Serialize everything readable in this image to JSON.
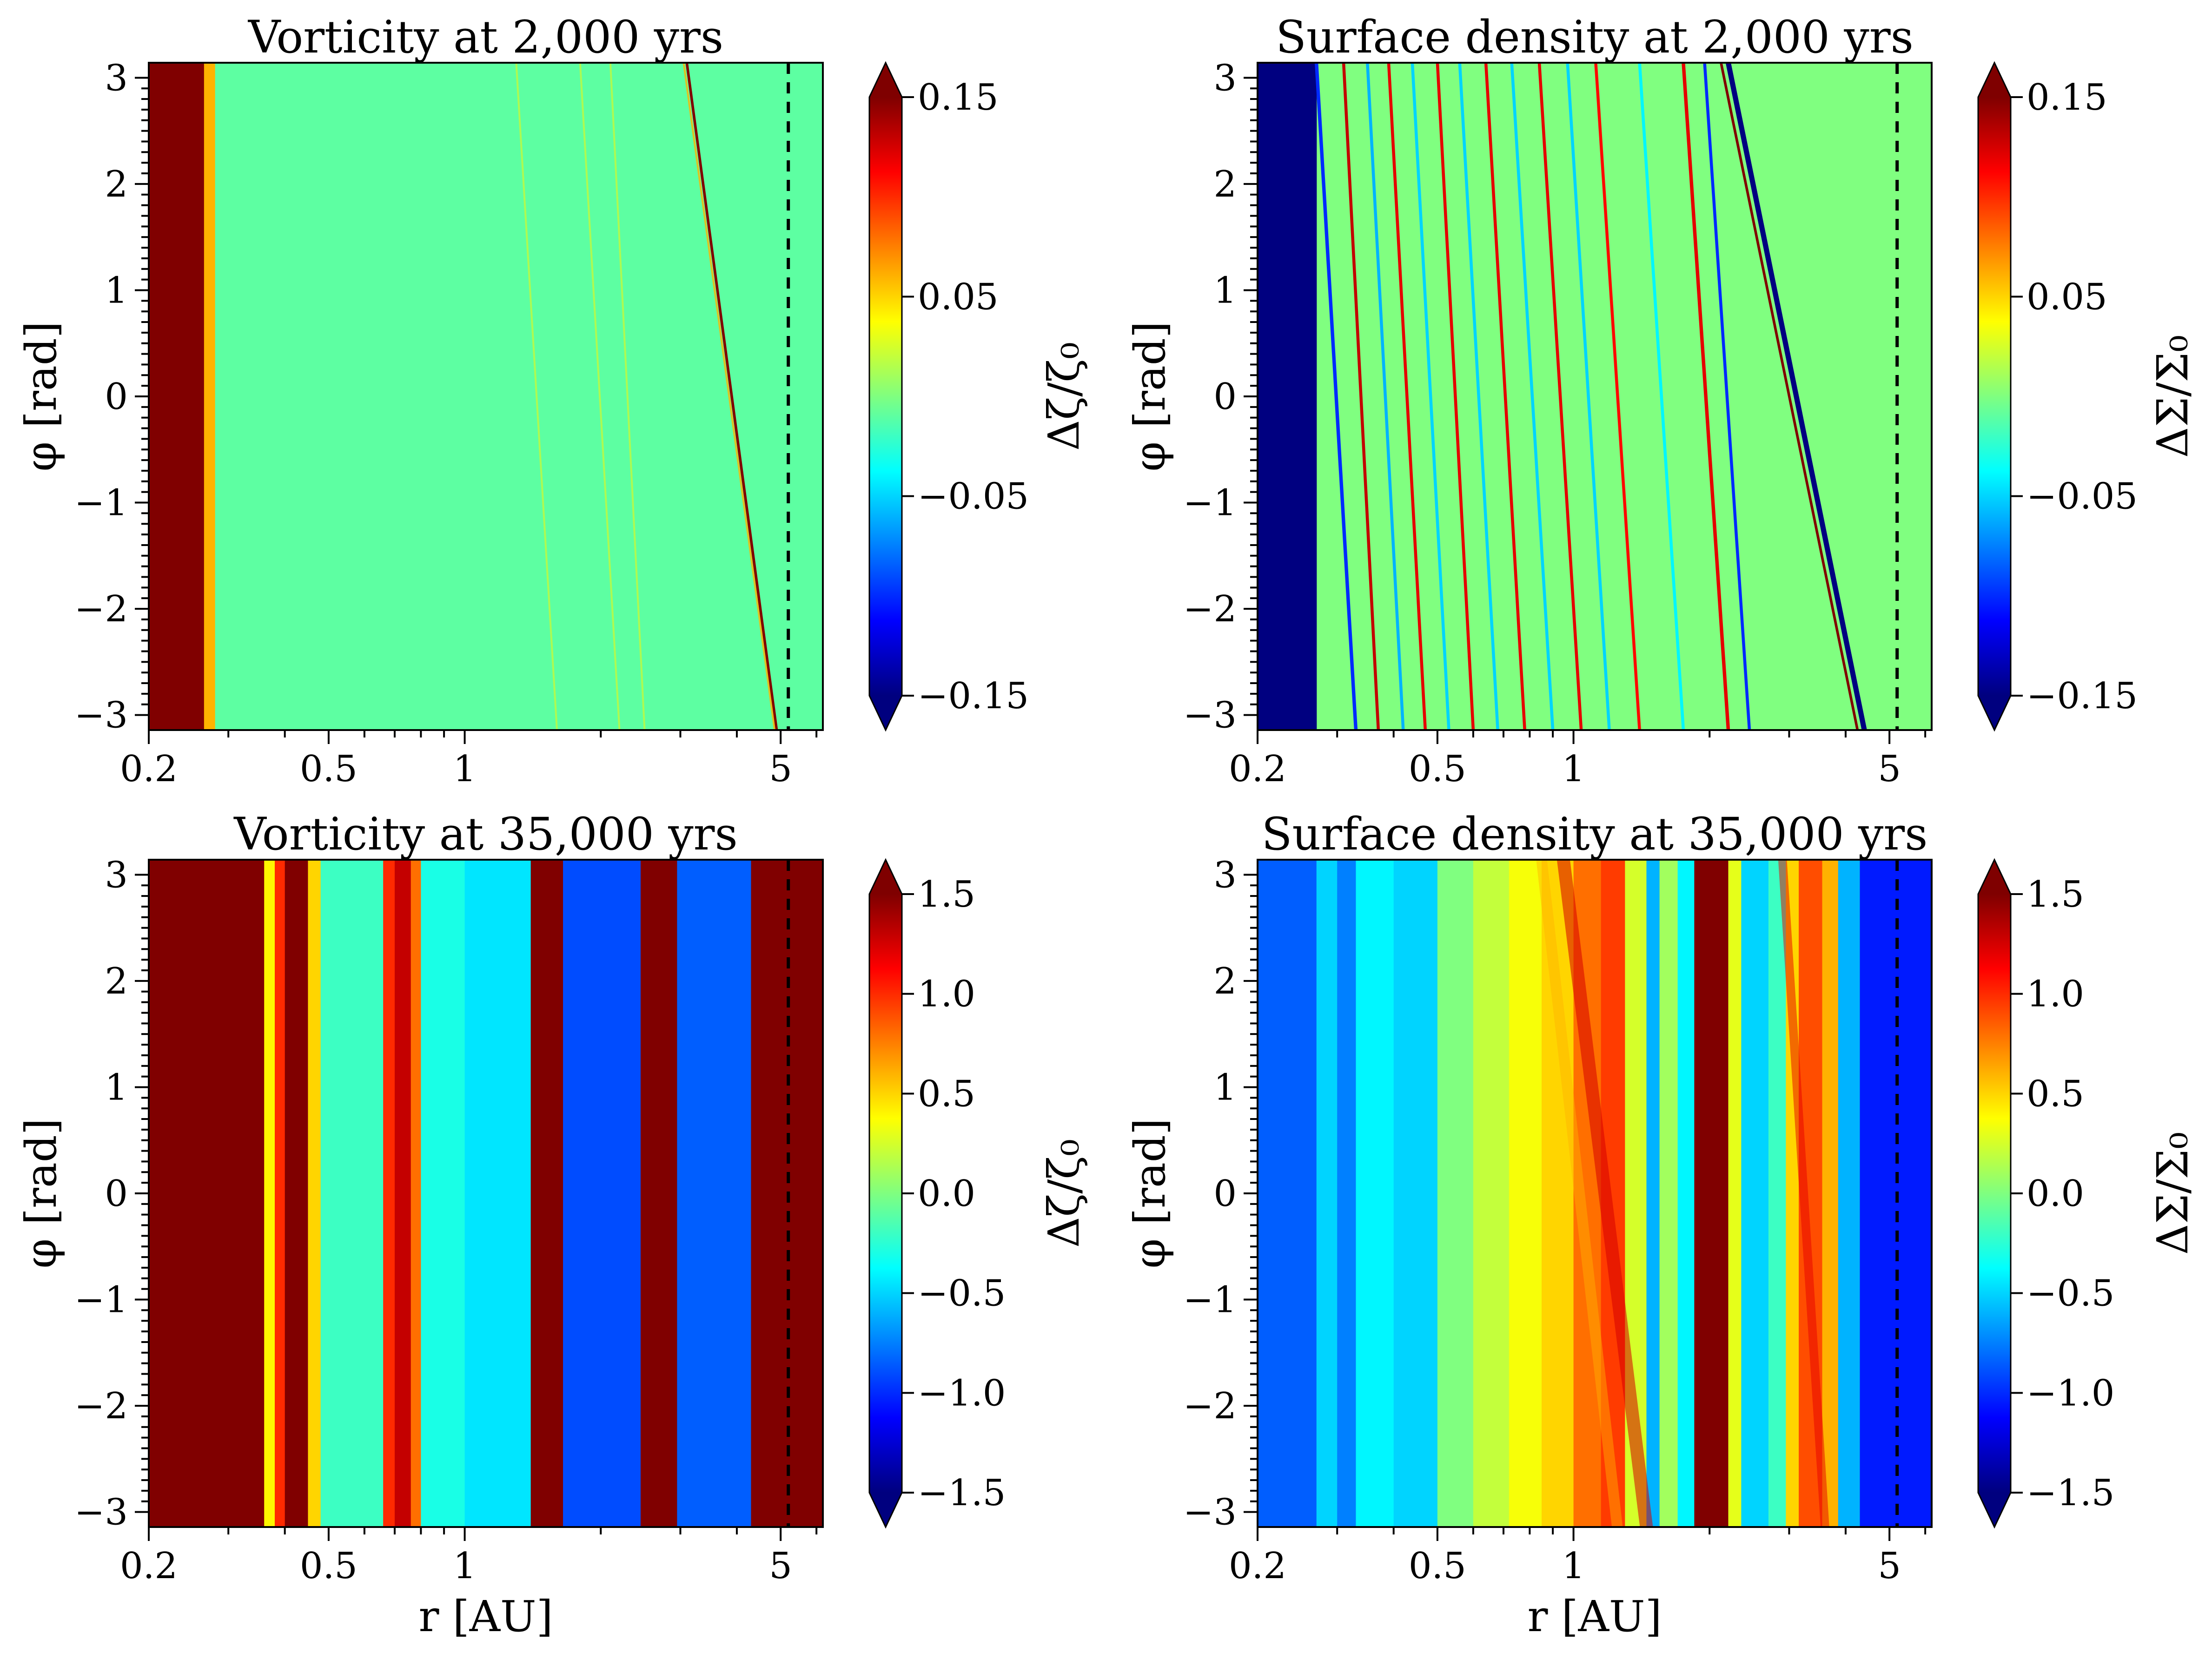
{
  "chart_data": [
    {
      "type": "heatmap",
      "title": "Vorticity at 2,000 yrs",
      "xlabel": "",
      "ylabel": "φ [rad]",
      "x_scale": "log",
      "xlim": [
        0.2,
        6.2
      ],
      "ylim": [
        -3.1416,
        3.1416
      ],
      "xticks": [
        0.2,
        0.5,
        1,
        5
      ],
      "xtick_labels": [
        "0.2",
        "0.5",
        "1",
        "5"
      ],
      "yticks": [
        -3,
        -2,
        -1,
        0,
        1,
        2,
        3
      ],
      "ytick_labels": [
        "−3",
        "−2",
        "−1",
        "0",
        "1",
        "2",
        "3"
      ],
      "planet_r": 5.2,
      "colorbar": {
        "label": "Δζ/ζ₀",
        "range": [
          -0.15,
          0.15
        ],
        "ticks": [
          -0.15,
          -0.05,
          0.05,
          0.15
        ],
        "tick_labels": [
          "−0.15",
          "−0.05",
          "0.05",
          "0.15"
        ],
        "extend": "both",
        "colormap": "jet"
      },
      "background": -0.01,
      "bands": [
        {
          "r0": 0.2,
          "r1": 0.265,
          "v": 0.3
        },
        {
          "r0": 0.265,
          "r1": 0.28,
          "v": 0.06
        }
      ],
      "spirals": [
        {
          "r0": 3.1,
          "r1": 4.9,
          "w": 0.006,
          "v": 0.15,
          "alpha": 1.0
        },
        {
          "r0": 3.05,
          "r1": 4.85,
          "w": 0.004,
          "v": 0.06,
          "alpha": 0.8
        },
        {
          "r0": 1.3,
          "r1": 1.6,
          "w": 0.004,
          "v": 0.04,
          "alpha": 0.5
        },
        {
          "r0": 1.8,
          "r1": 2.2,
          "w": 0.004,
          "v": 0.04,
          "alpha": 0.5
        },
        {
          "r0": 2.1,
          "r1": 2.5,
          "w": 0.004,
          "v": 0.04,
          "alpha": 0.5
        }
      ]
    },
    {
      "type": "heatmap",
      "title": "Surface density at 2,000 yrs",
      "xlabel": "",
      "ylabel": "φ [rad]",
      "x_scale": "log",
      "xlim": [
        0.2,
        6.2
      ],
      "ylim": [
        -3.1416,
        3.1416
      ],
      "xticks": [
        0.2,
        0.5,
        1,
        5
      ],
      "xtick_labels": [
        "0.2",
        "0.5",
        "1",
        "5"
      ],
      "yticks": [
        -3,
        -2,
        -1,
        0,
        1,
        2,
        3
      ],
      "ytick_labels": [
        "−3",
        "−2",
        "−1",
        "0",
        "1",
        "2",
        "3"
      ],
      "planet_r": 5.2,
      "colorbar": {
        "label": "ΔΣ/Σ₀",
        "range": [
          -0.15,
          0.15
        ],
        "ticks": [
          -0.15,
          -0.05,
          0.05,
          0.15
        ],
        "tick_labels": [
          "−0.15",
          "−0.05",
          "0.05",
          "0.15"
        ],
        "extend": "both",
        "colormap": "jet"
      },
      "background": 0.0,
      "bands": [
        {
          "r0": 0.2,
          "r1": 0.27,
          "v": -0.3
        }
      ],
      "spirals": [
        {
          "r0": 0.27,
          "r1": 0.33,
          "w": 0.008,
          "v": -0.1,
          "alpha": 1.0
        },
        {
          "r0": 0.31,
          "r1": 0.37,
          "w": 0.007,
          "v": 0.13,
          "alpha": 1.0
        },
        {
          "r0": 0.35,
          "r1": 0.42,
          "w": 0.007,
          "v": -0.06,
          "alpha": 1.0
        },
        {
          "r0": 0.39,
          "r1": 0.47,
          "w": 0.007,
          "v": 0.12,
          "alpha": 1.0
        },
        {
          "r0": 0.44,
          "r1": 0.53,
          "w": 0.007,
          "v": -0.05,
          "alpha": 1.0
        },
        {
          "r0": 0.5,
          "r1": 0.6,
          "w": 0.007,
          "v": 0.12,
          "alpha": 1.0
        },
        {
          "r0": 0.56,
          "r1": 0.68,
          "w": 0.007,
          "v": -0.05,
          "alpha": 1.0
        },
        {
          "r0": 0.64,
          "r1": 0.78,
          "w": 0.007,
          "v": 0.12,
          "alpha": 1.0
        },
        {
          "r0": 0.73,
          "r1": 0.9,
          "w": 0.007,
          "v": -0.05,
          "alpha": 1.0
        },
        {
          "r0": 0.84,
          "r1": 1.04,
          "w": 0.007,
          "v": 0.12,
          "alpha": 1.0
        },
        {
          "r0": 0.97,
          "r1": 1.2,
          "w": 0.007,
          "v": -0.05,
          "alpha": 1.0
        },
        {
          "r0": 1.12,
          "r1": 1.4,
          "w": 0.007,
          "v": 0.11,
          "alpha": 1.0
        },
        {
          "r0": 1.4,
          "r1": 1.75,
          "w": 0.007,
          "v": -0.04,
          "alpha": 1.0
        },
        {
          "r0": 1.75,
          "r1": 2.2,
          "w": 0.008,
          "v": 0.12,
          "alpha": 1.0
        },
        {
          "r0": 1.95,
          "r1": 2.45,
          "w": 0.007,
          "v": -0.1,
          "alpha": 1.0
        },
        {
          "r0": 2.2,
          "r1": 4.4,
          "w": 0.012,
          "v": -0.15,
          "alpha": 1.0
        },
        {
          "r0": 2.12,
          "r1": 4.25,
          "w": 0.006,
          "v": 0.15,
          "alpha": 1.0
        }
      ]
    },
    {
      "type": "heatmap",
      "title": "Vorticity at 35,000 yrs",
      "xlabel": "r [AU]",
      "ylabel": "φ [rad]",
      "x_scale": "log",
      "xlim": [
        0.2,
        6.2
      ],
      "ylim": [
        -3.1416,
        3.1416
      ],
      "xticks": [
        0.2,
        0.5,
        1,
        5
      ],
      "xtick_labels": [
        "0.2",
        "0.5",
        "1",
        "5"
      ],
      "yticks": [
        -3,
        -2,
        -1,
        0,
        1,
        2,
        3
      ],
      "ytick_labels": [
        "−3",
        "−2",
        "−1",
        "0",
        "1",
        "2",
        "3"
      ],
      "planet_r": 5.2,
      "colorbar": {
        "label": "Δζ/ζ₀",
        "range": [
          -1.5,
          1.5
        ],
        "ticks": [
          -1.5,
          -1.0,
          -0.5,
          0.0,
          0.5,
          1.0,
          1.5
        ],
        "tick_labels": [
          "−1.5",
          "−1.0",
          "−0.5",
          "0.0",
          "0.5",
          "1.0",
          "1.5"
        ],
        "extend": "both",
        "colormap": "jet"
      },
      "background": -0.3,
      "bands": [
        {
          "r0": 0.2,
          "r1": 0.36,
          "v": 3.0
        },
        {
          "r0": 0.36,
          "r1": 0.38,
          "v": 0.4
        },
        {
          "r0": 0.38,
          "r1": 0.4,
          "v": 1.0
        },
        {
          "r0": 0.4,
          "r1": 0.45,
          "v": 3.0
        },
        {
          "r0": 0.45,
          "r1": 0.48,
          "v": 0.5
        },
        {
          "r0": 0.48,
          "r1": 0.66,
          "v": -0.2
        },
        {
          "r0": 0.66,
          "r1": 0.7,
          "v": 1.0
        },
        {
          "r0": 0.7,
          "r1": 0.76,
          "v": 1.3
        },
        {
          "r0": 0.76,
          "r1": 0.8,
          "v": 0.8
        },
        {
          "r0": 0.8,
          "r1": 1.0,
          "v": -0.3
        },
        {
          "r0": 1.0,
          "r1": 1.4,
          "v": -0.45
        },
        {
          "r0": 1.4,
          "r1": 1.65,
          "v": 3.0
        },
        {
          "r0": 1.65,
          "r1": 2.45,
          "v": -0.9
        },
        {
          "r0": 2.45,
          "r1": 2.95,
          "v": 3.0
        },
        {
          "r0": 2.95,
          "r1": 4.3,
          "v": -0.85
        },
        {
          "r0": 4.3,
          "r1": 6.2,
          "v": 3.0
        }
      ],
      "spirals": []
    },
    {
      "type": "heatmap",
      "title": "Surface density at 35,000 yrs",
      "xlabel": "r [AU]",
      "ylabel": "φ [rad]",
      "x_scale": "log",
      "xlim": [
        0.2,
        6.2
      ],
      "ylim": [
        -3.1416,
        3.1416
      ],
      "xticks": [
        0.2,
        0.5,
        1,
        5
      ],
      "xtick_labels": [
        "0.2",
        "0.5",
        "1",
        "5"
      ],
      "yticks": [
        -3,
        -2,
        -1,
        0,
        1,
        2,
        3
      ],
      "ytick_labels": [
        "−3",
        "−2",
        "−1",
        "0",
        "1",
        "2",
        "3"
      ],
      "planet_r": 5.2,
      "colorbar": {
        "label": "ΔΣ/Σ₀",
        "range": [
          -1.5,
          1.5
        ],
        "ticks": [
          -1.5,
          -1.0,
          -0.5,
          0.0,
          0.5,
          1.0,
          1.5
        ],
        "tick_labels": [
          "−1.5",
          "−1.0",
          "−0.5",
          "0.0",
          "0.5",
          "1.0",
          "1.5"
        ],
        "extend": "both",
        "colormap": "jet"
      },
      "background": -0.8,
      "bands": [
        {
          "r0": 0.2,
          "r1": 0.27,
          "v": -0.85
        },
        {
          "r0": 0.27,
          "r1": 0.3,
          "v": -0.5
        },
        {
          "r0": 0.3,
          "r1": 0.33,
          "v": -0.75
        },
        {
          "r0": 0.33,
          "r1": 0.4,
          "v": -0.4
        },
        {
          "r0": 0.4,
          "r1": 0.5,
          "v": -0.5
        },
        {
          "r0": 0.5,
          "r1": 0.6,
          "v": 0.0
        },
        {
          "r0": 0.6,
          "r1": 0.72,
          "v": 0.2
        },
        {
          "r0": 0.72,
          "r1": 0.85,
          "v": 0.35
        },
        {
          "r0": 0.85,
          "r1": 1.0,
          "v": 0.5
        },
        {
          "r0": 1.0,
          "r1": 1.15,
          "v": 0.8
        },
        {
          "r0": 1.15,
          "r1": 1.3,
          "v": 0.95
        },
        {
          "r0": 1.3,
          "r1": 1.45,
          "v": 0.25
        },
        {
          "r0": 1.45,
          "r1": 1.55,
          "v": -0.6
        },
        {
          "r0": 1.55,
          "r1": 1.7,
          "v": 0.1
        },
        {
          "r0": 1.7,
          "r1": 1.85,
          "v": -0.4
        },
        {
          "r0": 1.85,
          "r1": 2.2,
          "v": 3.0
        },
        {
          "r0": 2.2,
          "r1": 2.35,
          "v": 0.3
        },
        {
          "r0": 2.35,
          "r1": 2.7,
          "v": -0.5
        },
        {
          "r0": 2.7,
          "r1": 2.95,
          "v": -0.2
        },
        {
          "r0": 2.95,
          "r1": 3.15,
          "v": 0.5
        },
        {
          "r0": 3.15,
          "r1": 3.55,
          "v": 0.9
        },
        {
          "r0": 3.55,
          "r1": 3.85,
          "v": 0.6
        },
        {
          "r0": 3.85,
          "r1": 4.3,
          "v": -0.6
        },
        {
          "r0": 4.3,
          "r1": 6.2,
          "v": -1.05
        }
      ],
      "spirals": [
        {
          "r0": 0.95,
          "r1": 1.45,
          "w": 0.03,
          "v": 1.25,
          "alpha": 0.55
        },
        {
          "r0": 0.85,
          "r1": 1.25,
          "w": 0.025,
          "v": 0.6,
          "alpha": 0.45
        },
        {
          "r0": 2.9,
          "r1": 3.6,
          "w": 0.02,
          "v": 1.2,
          "alpha": 0.5
        }
      ]
    }
  ]
}
